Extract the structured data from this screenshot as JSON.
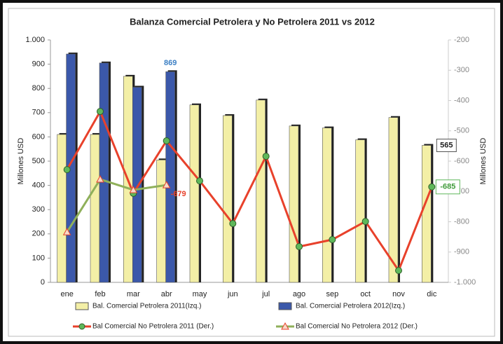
{
  "chart_data": {
    "type": "bar",
    "title": "Balanza Comercial Petrolera y No Petrolera 2011 vs 2012",
    "y_label": "Millones USD",
    "y2_label": "Millones USD",
    "categories": [
      "ene",
      "feb",
      "mar",
      "abr",
      "may",
      "jun",
      "jul",
      "ago",
      "sep",
      "oct",
      "nov",
      "dic"
    ],
    "ylim": [
      0,
      1000
    ],
    "yticks": [
      0,
      100,
      200,
      300,
      400,
      500,
      600,
      700,
      800,
      900,
      {
        "value": 1000,
        "label": "1.000"
      }
    ],
    "y2lim": [
      -1000,
      -200
    ],
    "y2ticks": [
      {
        "value": -1000,
        "label": "-1.000"
      },
      -900,
      -800,
      -700,
      -600,
      -500,
      -400,
      -300,
      -200
    ],
    "grid": false,
    "legend": "bottom",
    "series": [
      {
        "name": "Bal. Comercial Petrolera 2011(Izq.)",
        "type": "bar",
        "color": "#f3efa6",
        "values": [
          610,
          610,
          850,
          505,
          732,
          688,
          752,
          645,
          637,
          588,
          680,
          565
        ],
        "value_labels": [
          null,
          null,
          null,
          null,
          null,
          null,
          null,
          null,
          null,
          null,
          null,
          "565"
        ]
      },
      {
        "name": "Bal. Comercial Petrolera 2012(Izq.)",
        "type": "bar",
        "color": "#3b58aa",
        "values": [
          942,
          905,
          805,
          869,
          null,
          null,
          null,
          null,
          null,
          null,
          null,
          null
        ],
        "value_labels": [
          null,
          null,
          null,
          "869",
          null,
          null,
          null,
          null,
          null,
          null,
          null,
          null
        ]
      },
      {
        "name": "Bal Comercial No Petrolera 2011 (Der.)",
        "type": "line",
        "axis": "y2",
        "color": "#e8412b",
        "marker_color": "#5fb85a",
        "values": [
          -628,
          -436,
          -706,
          -533,
          -665,
          -806,
          -584,
          -882,
          -859,
          -799,
          -961,
          -685
        ],
        "value_labels": [
          null,
          null,
          null,
          null,
          null,
          null,
          null,
          null,
          null,
          null,
          null,
          "-685"
        ]
      },
      {
        "name": "Bal Comercial No Petrolera 2012 (Der.)",
        "type": "line",
        "axis": "y2",
        "color": "#8fb05a",
        "marker_color": "#f6d9c8",
        "values": [
          -834,
          -660,
          -695,
          -679,
          null,
          null,
          null,
          null,
          null,
          null,
          null,
          null
        ],
        "value_labels": [
          null,
          null,
          null,
          "-679",
          null,
          null,
          null,
          null,
          null,
          null,
          null,
          null
        ]
      }
    ]
  }
}
